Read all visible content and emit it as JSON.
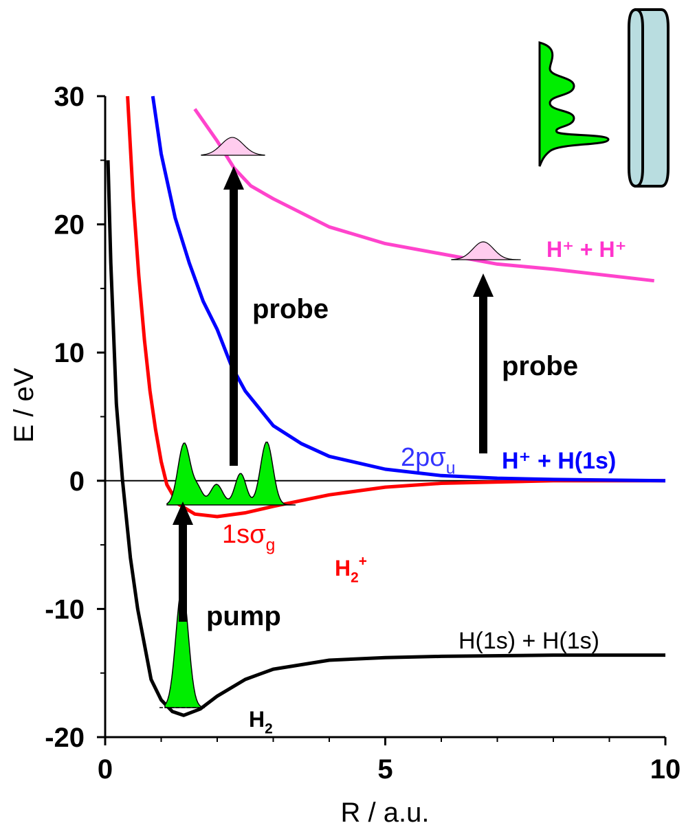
{
  "chart_data": {
    "type": "line",
    "x_label": "R / a.u.",
    "y_label": "E / eV",
    "xlim": [
      0,
      10
    ],
    "ylim": [
      -20,
      30
    ],
    "xticks": [
      0,
      5,
      10
    ],
    "yticks": [
      -20,
      -10,
      0,
      10,
      20,
      30
    ],
    "xminorticks": [
      1,
      2,
      3,
      4,
      6,
      7,
      8,
      9
    ],
    "yminorticks": [
      -15,
      -5,
      5,
      15,
      25
    ],
    "hline": 0,
    "series": [
      {
        "color": "#000000",
        "x": [
          0.05,
          0.1,
          0.2,
          0.31,
          0.45,
          0.58,
          0.82,
          1.0,
          1.2,
          1.4,
          1.7,
          2.0,
          2.5,
          3,
          4,
          5,
          6,
          8,
          10
        ],
        "values": [
          25,
          17,
          6,
          0,
          -6,
          -10,
          -15.5,
          -17.1,
          -18.0,
          -18.3,
          -17.8,
          -16.8,
          -15.5,
          -14.7,
          -14.0,
          -13.8,
          -13.7,
          -13.6,
          -13.6
        ]
      },
      {
        "color": "#ff0000",
        "x": [
          0.4,
          0.5,
          0.6,
          0.7,
          0.8,
          0.9,
          1.0,
          1.1,
          1.3,
          1.6,
          2.0,
          2.5,
          3,
          4,
          5,
          6,
          8,
          10
        ],
        "values": [
          30,
          22,
          16,
          11,
          7,
          4,
          1.5,
          -0.3,
          -1.8,
          -2.6,
          -2.8,
          -2.5,
          -2.0,
          -1.1,
          -0.5,
          -0.2,
          0,
          0
        ]
      },
      {
        "color": "#0000ff",
        "x": [
          0.85,
          1.0,
          1.25,
          1.5,
          1.75,
          2.0,
          2.25,
          2.5,
          3,
          3.5,
          4,
          5,
          6,
          7,
          8,
          10
        ],
        "values": [
          30,
          25.5,
          20.5,
          17,
          14,
          11.8,
          9,
          7,
          4.3,
          2.9,
          1.9,
          0.9,
          0.4,
          0.2,
          0.1,
          0
        ]
      },
      {
        "color": "#ff44cc",
        "x": [
          1.6,
          2.0,
          2.3,
          2.6,
          3,
          4,
          5,
          6,
          7,
          8,
          9.8
        ],
        "values": [
          29,
          26.5,
          24.4,
          23,
          22,
          19.8,
          18.5,
          17.7,
          16.9,
          16.5,
          15.6
        ]
      }
    ],
    "annotations": [
      {
        "text": "probe",
        "color": "#000000"
      },
      {
        "text": "probe",
        "color": "#000000"
      },
      {
        "text": "pump",
        "color": "#000000"
      },
      {
        "text": "H",
        "sub": "2",
        "color": "#000000"
      },
      {
        "text": "H",
        "sub": "2",
        "sup": "+",
        "color": "#ff0000"
      },
      {
        "text": "1sσ",
        "sub": "g",
        "color": "#ff0000"
      },
      {
        "text": "2pσ",
        "sub": "u",
        "color": "#3333ff"
      },
      {
        "text": "H⁺ + H(1s)",
        "color": "#0000ff"
      },
      {
        "text": "H⁺ + H⁺",
        "color": "#ff33cc"
      },
      {
        "text": "H(1s) + H(1s)",
        "color": "#000000"
      }
    ]
  }
}
